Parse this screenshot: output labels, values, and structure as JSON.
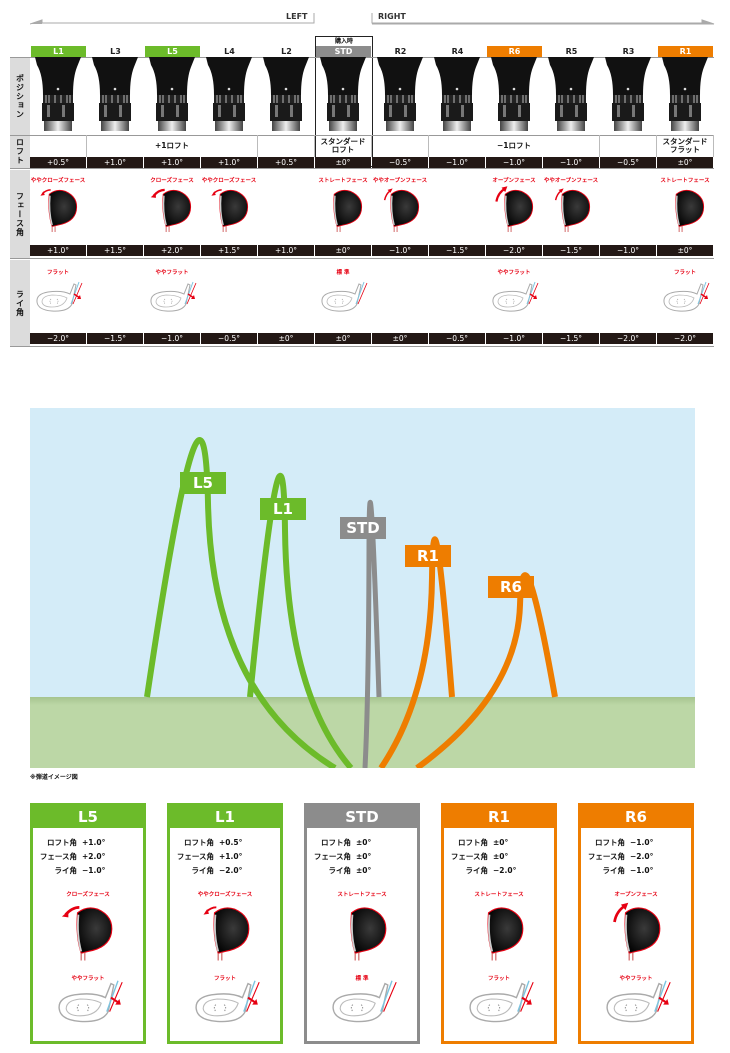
{
  "directions": {
    "left": "LEFT",
    "right": "RIGHT"
  },
  "row_labels": {
    "position": "ポジション",
    "loft": "ロフト",
    "face": "フェース角",
    "lie": "ライ角"
  },
  "purchase_label": "購入時",
  "colors": {
    "green": "#6cbb2a",
    "orange": "#ee7d00",
    "gray": "#8c8c8c",
    "dark": "#231815",
    "red": "#e60012",
    "sky": "#d4ecf8",
    "ground": "#bcd7a6"
  },
  "columns": [
    {
      "id": "L1",
      "highlight": "green",
      "loft": "+0.5°",
      "face_label": "ややクローズフェース",
      "face_dir": "close-slight",
      "face": "+1.0°",
      "lie": "−2.0°",
      "lie_label": "フラット"
    },
    {
      "id": "L3",
      "highlight": "",
      "loft": "+1.0°",
      "face_label": "",
      "face_dir": "",
      "face": "+1.5°",
      "lie": "−1.5°",
      "lie_label": ""
    },
    {
      "id": "L5",
      "highlight": "green",
      "loft": "+1.0°",
      "face_label": "クローズフェース",
      "face_dir": "close",
      "face": "+2.0°",
      "lie": "−1.0°",
      "lie_label": "ややフラット"
    },
    {
      "id": "L4",
      "highlight": "",
      "loft": "+1.0°",
      "face_label": "ややクローズフェース",
      "face_dir": "close-slight",
      "face": "+1.5°",
      "lie": "−0.5°",
      "lie_label": ""
    },
    {
      "id": "L2",
      "highlight": "",
      "loft": "+0.5°",
      "face_label": "",
      "face_dir": "",
      "face": "+1.0°",
      "lie": "±0°",
      "lie_label": ""
    },
    {
      "id": "STD",
      "highlight": "gray",
      "loft": "±0°",
      "face_label": "ストレートフェース",
      "face_dir": "straight",
      "face": "±0°",
      "lie": "±0°",
      "lie_label": "標 準"
    },
    {
      "id": "R2",
      "highlight": "",
      "loft": "−0.5°",
      "face_label": "ややオープンフェース",
      "face_dir": "open-slight",
      "face": "−1.0°",
      "lie": "±0°",
      "lie_label": ""
    },
    {
      "id": "R4",
      "highlight": "",
      "loft": "−1.0°",
      "face_label": "",
      "face_dir": "",
      "face": "−1.5°",
      "lie": "−0.5°",
      "lie_label": ""
    },
    {
      "id": "R6",
      "highlight": "orange",
      "loft": "−1.0°",
      "face_label": "オープンフェース",
      "face_dir": "open",
      "face": "−2.0°",
      "lie": "−1.0°",
      "lie_label": "ややフラット"
    },
    {
      "id": "R5",
      "highlight": "",
      "loft": "−1.0°",
      "face_label": "ややオープンフェース",
      "face_dir": "open-slight",
      "face": "−1.5°",
      "lie": "−1.5°",
      "lie_label": ""
    },
    {
      "id": "R3",
      "highlight": "",
      "loft": "−0.5°",
      "face_label": "",
      "face_dir": "",
      "face": "−1.0°",
      "lie": "−2.0°",
      "lie_label": ""
    },
    {
      "id": "R1",
      "highlight": "orange",
      "loft": "±0°",
      "face_label": "ストレートフェース",
      "face_dir": "straight",
      "face": "±0°",
      "lie": "−2.0°",
      "lie_label": "フラット"
    }
  ],
  "loft_groups": [
    {
      "label": "",
      "span": 1
    },
    {
      "label": "+1ロフト",
      "span": 3
    },
    {
      "label": "",
      "span": 1
    },
    {
      "label": "スタンダード\nロフト",
      "span": 1
    },
    {
      "label": "",
      "span": 1
    },
    {
      "label": "−1ロフト",
      "span": 3
    },
    {
      "label": "",
      "span": 1
    },
    {
      "label": "スタンダード\nフラット",
      "span": 1
    }
  ],
  "trajectory": {
    "note": "※弾道イメージ図",
    "labels": [
      {
        "id": "L5",
        "color": "green"
      },
      {
        "id": "L1",
        "color": "green"
      },
      {
        "id": "STD",
        "color": "gray"
      },
      {
        "id": "R1",
        "color": "orange"
      },
      {
        "id": "R6",
        "color": "orange"
      }
    ]
  },
  "cards": [
    {
      "id": "L5",
      "color": "green",
      "specs": [
        [
          "ロフト角",
          "+1.0°"
        ],
        [
          "フェース角",
          "+2.0°"
        ],
        [
          "ライ角",
          "−1.0°"
        ]
      ],
      "face_label": "クローズフェース",
      "face_dir": "close",
      "lie_label": "ややフラット"
    },
    {
      "id": "L1",
      "color": "green",
      "specs": [
        [
          "ロフト角",
          "+0.5°"
        ],
        [
          "フェース角",
          "+1.0°"
        ],
        [
          "ライ角",
          "−2.0°"
        ]
      ],
      "face_label": "ややクローズフェース",
      "face_dir": "close-slight",
      "lie_label": "フラット"
    },
    {
      "id": "STD",
      "color": "gray",
      "specs": [
        [
          "ロフト角",
          "±0°"
        ],
        [
          "フェース角",
          "±0°"
        ],
        [
          "ライ角",
          "±0°"
        ]
      ],
      "face_label": "ストレートフェース",
      "face_dir": "straight",
      "lie_label": "標 準"
    },
    {
      "id": "R1",
      "color": "orange",
      "specs": [
        [
          "ロフト角",
          "±0°"
        ],
        [
          "フェース角",
          "±0°"
        ],
        [
          "ライ角",
          "−2.0°"
        ]
      ],
      "face_label": "ストレートフェース",
      "face_dir": "straight",
      "lie_label": "フラット"
    },
    {
      "id": "R6",
      "color": "orange",
      "specs": [
        [
          "ロフト角",
          "−1.0°"
        ],
        [
          "フェース角",
          "−2.0°"
        ],
        [
          "ライ角",
          "−1.0°"
        ]
      ],
      "face_label": "オープンフェース",
      "face_dir": "open",
      "lie_label": "ややフラット"
    }
  ]
}
